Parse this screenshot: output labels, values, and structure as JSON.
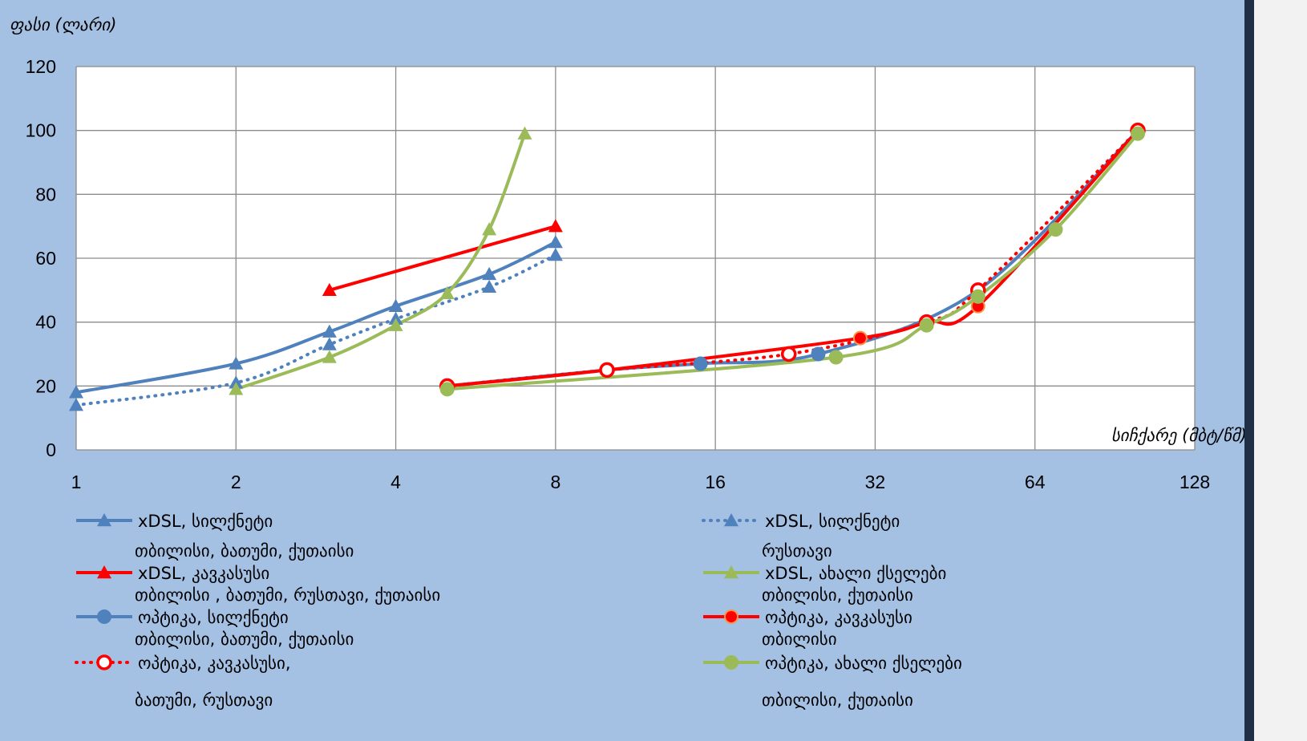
{
  "colors": {
    "background": "#a4c0e3",
    "plot_area": "#ffffff",
    "grid": "#8c8c8c",
    "blue": "#4f81bd",
    "red": "#ff0000",
    "green": "#9bbb59",
    "right_border": "#1f2f45"
  },
  "chart_data": {
    "type": "line",
    "title": "",
    "ylabel": "ფასი (ლარი)",
    "xlabel": "სიჩქარე (მბტ/წმ)",
    "x_scale": "log2",
    "xlim": [
      1,
      128
    ],
    "ylim": [
      0,
      120
    ],
    "x_ticks": [
      1,
      2,
      4,
      8,
      16,
      32,
      64,
      128
    ],
    "y_ticks": [
      0,
      20,
      40,
      60,
      80,
      100,
      120
    ],
    "x_tick_labels": [
      "1",
      "2",
      "4",
      "8",
      "16",
      "32",
      "64",
      "128"
    ],
    "y_tick_labels": [
      "0",
      "20",
      "40",
      "60",
      "80",
      "100",
      "120"
    ],
    "grid": true,
    "legend_position": "bottom",
    "series": [
      {
        "name": "xDSL, სილქნეტი",
        "note": "თბილისი, ბათუმი, ქუთაისი",
        "color": "#4f81bd",
        "marker": "triangle",
        "dash": "solid",
        "x": [
          1,
          2,
          3,
          4,
          6,
          8
        ],
        "y": [
          18,
          27,
          37,
          45,
          55,
          65
        ]
      },
      {
        "name": "xDSL, სილქნეტი",
        "note": "რუსთავი",
        "color": "#4f81bd",
        "marker": "triangle",
        "dash": "dotted",
        "x": [
          1,
          2,
          3,
          4,
          6,
          8
        ],
        "y": [
          14,
          21,
          33,
          41,
          51,
          61
        ]
      },
      {
        "name": "xDSL, კავკასუსი",
        "note": "თბილისი , ბათუმი, რუსთავი, ქუთაისი",
        "color": "#ff0000",
        "marker": "triangle",
        "dash": "solid",
        "x": [
          3,
          8
        ],
        "y": [
          50,
          70
        ]
      },
      {
        "name": "xDSL, ახალი ქსელები",
        "note": "თბილისი, ქუთაისი",
        "color": "#9bbb59",
        "marker": "triangle",
        "dash": "solid",
        "x": [
          2,
          3,
          4,
          5,
          6,
          7
        ],
        "y": [
          19,
          29,
          39,
          49,
          69,
          99
        ]
      },
      {
        "name": "ოპტიკა, სილქნეტი",
        "note": "თბილისი, ბათუმი, ქუთაისი",
        "color": "#4f81bd",
        "marker": "circle",
        "dash": "solid",
        "x": [
          5,
          10,
          15,
          25,
          50,
          100
        ],
        "y": [
          20,
          25,
          27,
          30,
          50,
          100
        ]
      },
      {
        "name": "ოპტიკა, კავკასუსი",
        "note": "თბილისი",
        "color": "#ff0000",
        "marker": "circle",
        "dash": "solid",
        "x": [
          5,
          10,
          30,
          40,
          50,
          100
        ],
        "y": [
          20,
          25,
          35,
          40,
          45,
          100
        ]
      },
      {
        "name": "ოპტიკა, კავკასუსი,",
        "note": "ბათუმი, რუსთავი",
        "color": "#ff0000",
        "marker": "ring",
        "dash": "dotted",
        "x": [
          5,
          10,
          22,
          40,
          50,
          100
        ],
        "y": [
          20,
          25,
          30,
          40,
          50,
          100
        ]
      },
      {
        "name": "ოპტიკა, ახალი ქსელები",
        "note": "თბილისი, ქუთაისი",
        "color": "#9bbb59",
        "marker": "circle",
        "dash": "solid",
        "x": [
          5,
          27,
          40,
          50,
          70,
          100
        ],
        "y": [
          19,
          29,
          39,
          48,
          69,
          99
        ]
      }
    ]
  }
}
